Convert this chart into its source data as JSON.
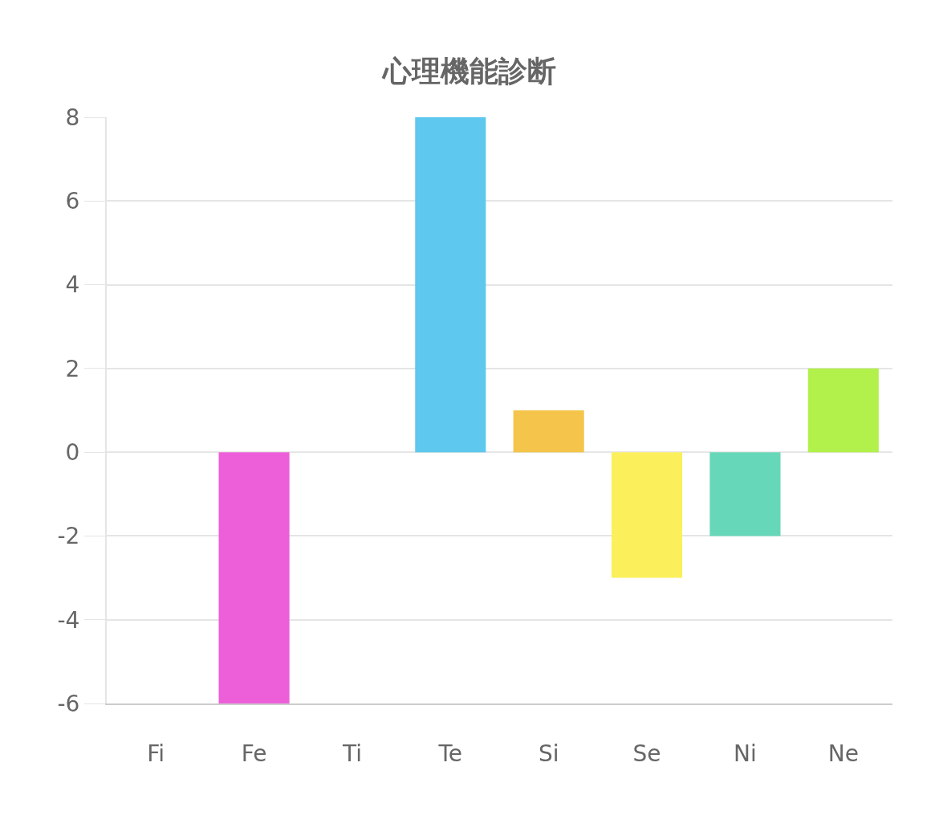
{
  "chart_data": {
    "type": "bar",
    "title": "心理機能診断",
    "categories": [
      "Fi",
      "Fe",
      "Ti",
      "Te",
      "Si",
      "Se",
      "Ni",
      "Ne"
    ],
    "values": [
      0,
      -6,
      0,
      8,
      1,
      -3,
      -2,
      2
    ],
    "colors": [
      null,
      "#ed5fd9",
      null,
      "#5ec8ee",
      "#f4c54a",
      "#fbf05b",
      "#66d7b8",
      "#b2f04c"
    ],
    "ylim": [
      -6,
      8
    ],
    "yticks": [
      -6,
      -4,
      -2,
      0,
      2,
      4,
      6,
      8
    ],
    "grid": "y"
  }
}
